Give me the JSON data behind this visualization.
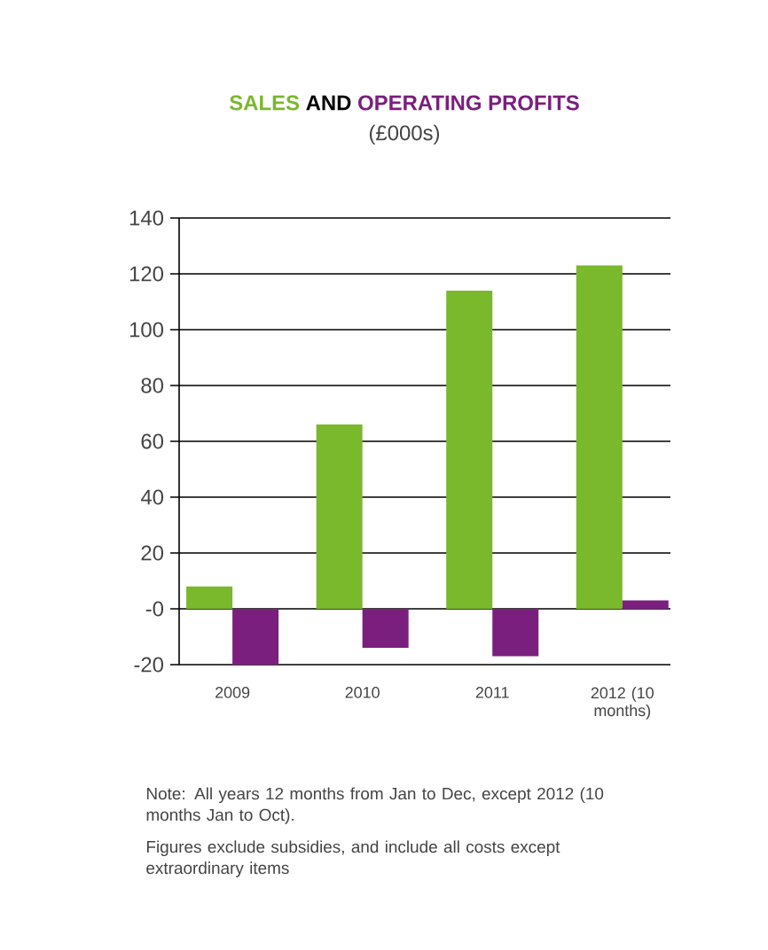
{
  "chart_data": {
    "type": "bar",
    "title": "AND",
    "subtitle": "(£000s)",
    "categories": [
      "2009",
      "2010",
      "2011",
      "2012 (10 months)"
    ],
    "series": [
      {
        "name": "SALES",
        "color": "#7ab82c",
        "values": [
          8,
          66,
          114,
          123
        ]
      },
      {
        "name": "OPERATING PROFITS",
        "color": "#7b1f7e",
        "values": [
          -20,
          -14,
          -17,
          3
        ]
      }
    ],
    "ylim": [
      -20,
      140
    ],
    "yticks": [
      {
        "value": -20,
        "label": "-20"
      },
      {
        "value": 0,
        "label": "-0"
      },
      20,
      40,
      60,
      80,
      100,
      120,
      140
    ],
    "grid": "y",
    "annotations": [
      "Note: All years 12 months from Jan to Dec, except 2012 (10 months Jan to Oct).",
      "Figures exclude subsidies, and include all costs except extraordinary items"
    ]
  }
}
